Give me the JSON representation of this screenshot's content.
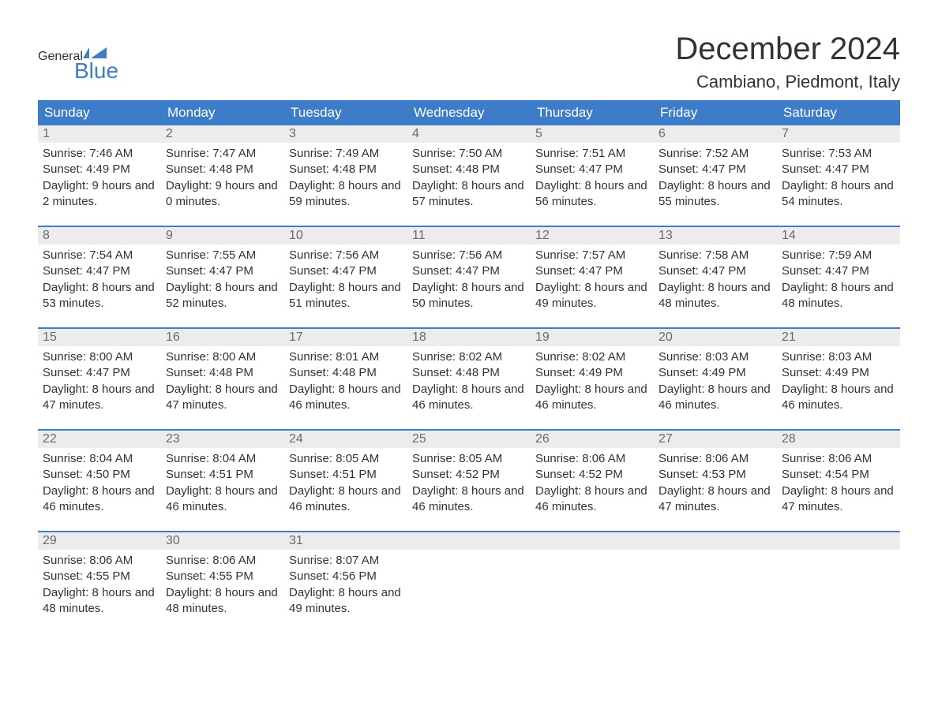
{
  "brand": {
    "word1": "General",
    "word2": "Blue",
    "text_color": "#333333",
    "accent_color": "#3d7cc9"
  },
  "title": "December 2024",
  "location": "Cambiano, Piedmont, Italy",
  "colors": {
    "header_bg": "#3d7cc9",
    "header_text": "#ffffff",
    "daynum_bg": "#ececec",
    "daynum_text": "#6a6a6a",
    "body_text": "#333333",
    "week_border": "#3d7cc9",
    "page_bg": "#ffffff"
  },
  "typography": {
    "title_fontsize": 40,
    "location_fontsize": 22,
    "weekday_fontsize": 17,
    "daynum_fontsize": 16,
    "body_fontsize": 15
  },
  "layout": {
    "columns": 7,
    "rows": 5
  },
  "weekdays": [
    "Sunday",
    "Monday",
    "Tuesday",
    "Wednesday",
    "Thursday",
    "Friday",
    "Saturday"
  ],
  "weeks": [
    [
      {
        "num": "1",
        "sunrise": "Sunrise: 7:46 AM",
        "sunset": "Sunset: 4:49 PM",
        "daylight": "Daylight: 9 hours and 2 minutes."
      },
      {
        "num": "2",
        "sunrise": "Sunrise: 7:47 AM",
        "sunset": "Sunset: 4:48 PM",
        "daylight": "Daylight: 9 hours and 0 minutes."
      },
      {
        "num": "3",
        "sunrise": "Sunrise: 7:49 AM",
        "sunset": "Sunset: 4:48 PM",
        "daylight": "Daylight: 8 hours and 59 minutes."
      },
      {
        "num": "4",
        "sunrise": "Sunrise: 7:50 AM",
        "sunset": "Sunset: 4:48 PM",
        "daylight": "Daylight: 8 hours and 57 minutes."
      },
      {
        "num": "5",
        "sunrise": "Sunrise: 7:51 AM",
        "sunset": "Sunset: 4:47 PM",
        "daylight": "Daylight: 8 hours and 56 minutes."
      },
      {
        "num": "6",
        "sunrise": "Sunrise: 7:52 AM",
        "sunset": "Sunset: 4:47 PM",
        "daylight": "Daylight: 8 hours and 55 minutes."
      },
      {
        "num": "7",
        "sunrise": "Sunrise: 7:53 AM",
        "sunset": "Sunset: 4:47 PM",
        "daylight": "Daylight: 8 hours and 54 minutes."
      }
    ],
    [
      {
        "num": "8",
        "sunrise": "Sunrise: 7:54 AM",
        "sunset": "Sunset: 4:47 PM",
        "daylight": "Daylight: 8 hours and 53 minutes."
      },
      {
        "num": "9",
        "sunrise": "Sunrise: 7:55 AM",
        "sunset": "Sunset: 4:47 PM",
        "daylight": "Daylight: 8 hours and 52 minutes."
      },
      {
        "num": "10",
        "sunrise": "Sunrise: 7:56 AM",
        "sunset": "Sunset: 4:47 PM",
        "daylight": "Daylight: 8 hours and 51 minutes."
      },
      {
        "num": "11",
        "sunrise": "Sunrise: 7:56 AM",
        "sunset": "Sunset: 4:47 PM",
        "daylight": "Daylight: 8 hours and 50 minutes."
      },
      {
        "num": "12",
        "sunrise": "Sunrise: 7:57 AM",
        "sunset": "Sunset: 4:47 PM",
        "daylight": "Daylight: 8 hours and 49 minutes."
      },
      {
        "num": "13",
        "sunrise": "Sunrise: 7:58 AM",
        "sunset": "Sunset: 4:47 PM",
        "daylight": "Daylight: 8 hours and 48 minutes."
      },
      {
        "num": "14",
        "sunrise": "Sunrise: 7:59 AM",
        "sunset": "Sunset: 4:47 PM",
        "daylight": "Daylight: 8 hours and 48 minutes."
      }
    ],
    [
      {
        "num": "15",
        "sunrise": "Sunrise: 8:00 AM",
        "sunset": "Sunset: 4:47 PM",
        "daylight": "Daylight: 8 hours and 47 minutes."
      },
      {
        "num": "16",
        "sunrise": "Sunrise: 8:00 AM",
        "sunset": "Sunset: 4:48 PM",
        "daylight": "Daylight: 8 hours and 47 minutes."
      },
      {
        "num": "17",
        "sunrise": "Sunrise: 8:01 AM",
        "sunset": "Sunset: 4:48 PM",
        "daylight": "Daylight: 8 hours and 46 minutes."
      },
      {
        "num": "18",
        "sunrise": "Sunrise: 8:02 AM",
        "sunset": "Sunset: 4:48 PM",
        "daylight": "Daylight: 8 hours and 46 minutes."
      },
      {
        "num": "19",
        "sunrise": "Sunrise: 8:02 AM",
        "sunset": "Sunset: 4:49 PM",
        "daylight": "Daylight: 8 hours and 46 minutes."
      },
      {
        "num": "20",
        "sunrise": "Sunrise: 8:03 AM",
        "sunset": "Sunset: 4:49 PM",
        "daylight": "Daylight: 8 hours and 46 minutes."
      },
      {
        "num": "21",
        "sunrise": "Sunrise: 8:03 AM",
        "sunset": "Sunset: 4:49 PM",
        "daylight": "Daylight: 8 hours and 46 minutes."
      }
    ],
    [
      {
        "num": "22",
        "sunrise": "Sunrise: 8:04 AM",
        "sunset": "Sunset: 4:50 PM",
        "daylight": "Daylight: 8 hours and 46 minutes."
      },
      {
        "num": "23",
        "sunrise": "Sunrise: 8:04 AM",
        "sunset": "Sunset: 4:51 PM",
        "daylight": "Daylight: 8 hours and 46 minutes."
      },
      {
        "num": "24",
        "sunrise": "Sunrise: 8:05 AM",
        "sunset": "Sunset: 4:51 PM",
        "daylight": "Daylight: 8 hours and 46 minutes."
      },
      {
        "num": "25",
        "sunrise": "Sunrise: 8:05 AM",
        "sunset": "Sunset: 4:52 PM",
        "daylight": "Daylight: 8 hours and 46 minutes."
      },
      {
        "num": "26",
        "sunrise": "Sunrise: 8:06 AM",
        "sunset": "Sunset: 4:52 PM",
        "daylight": "Daylight: 8 hours and 46 minutes."
      },
      {
        "num": "27",
        "sunrise": "Sunrise: 8:06 AM",
        "sunset": "Sunset: 4:53 PM",
        "daylight": "Daylight: 8 hours and 47 minutes."
      },
      {
        "num": "28",
        "sunrise": "Sunrise: 8:06 AM",
        "sunset": "Sunset: 4:54 PM",
        "daylight": "Daylight: 8 hours and 47 minutes."
      }
    ],
    [
      {
        "num": "29",
        "sunrise": "Sunrise: 8:06 AM",
        "sunset": "Sunset: 4:55 PM",
        "daylight": "Daylight: 8 hours and 48 minutes."
      },
      {
        "num": "30",
        "sunrise": "Sunrise: 8:06 AM",
        "sunset": "Sunset: 4:55 PM",
        "daylight": "Daylight: 8 hours and 48 minutes."
      },
      {
        "num": "31",
        "sunrise": "Sunrise: 8:07 AM",
        "sunset": "Sunset: 4:56 PM",
        "daylight": "Daylight: 8 hours and 49 minutes."
      }
    ]
  ]
}
